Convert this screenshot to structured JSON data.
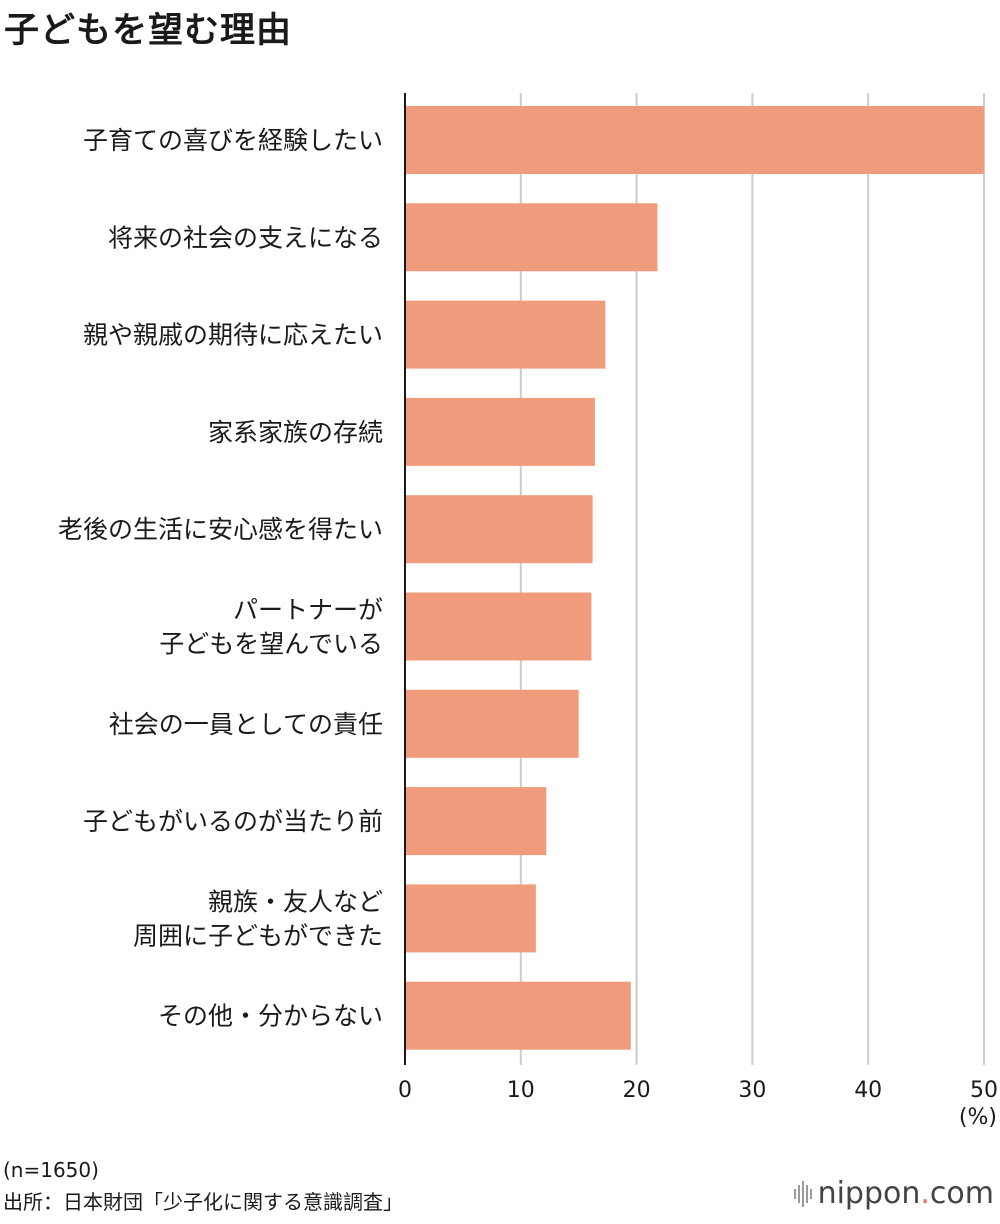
{
  "title": "子どもを望む理由",
  "unit": "(%)",
  "footnotes": {
    "n": "(n=1650)",
    "source": "出所：日本財団「少子化に関する意識調査」"
  },
  "brand": {
    "pre": "nippon",
    "dot": ".",
    "post": "com"
  },
  "colors": {
    "bar": "#F09C7C",
    "grid": "#cccccc",
    "axis": "#1a1a1a"
  },
  "chart_data": {
    "type": "bar",
    "orientation": "horizontal",
    "categories": [
      "子育ての喜びを経験したい",
      "将来の社会の支えになる",
      "親や親戚の期待に応えたい",
      "家系家族の存続",
      "老後の生活に安心感を得たい",
      "パートナーが\n子どもを望んでいる",
      "社会の一員としての責任",
      "子どもがいるのが当たり前",
      "親族・友人など\n周囲に子どもができた",
      "その他・分からない"
    ],
    "values": [
      50.0,
      21.8,
      17.3,
      16.4,
      16.2,
      16.1,
      15.0,
      12.2,
      11.3,
      19.5
    ],
    "xlim": [
      0,
      50
    ],
    "xticks": [
      "0",
      "10",
      "20",
      "30",
      "40",
      "50"
    ],
    "grid": true
  }
}
